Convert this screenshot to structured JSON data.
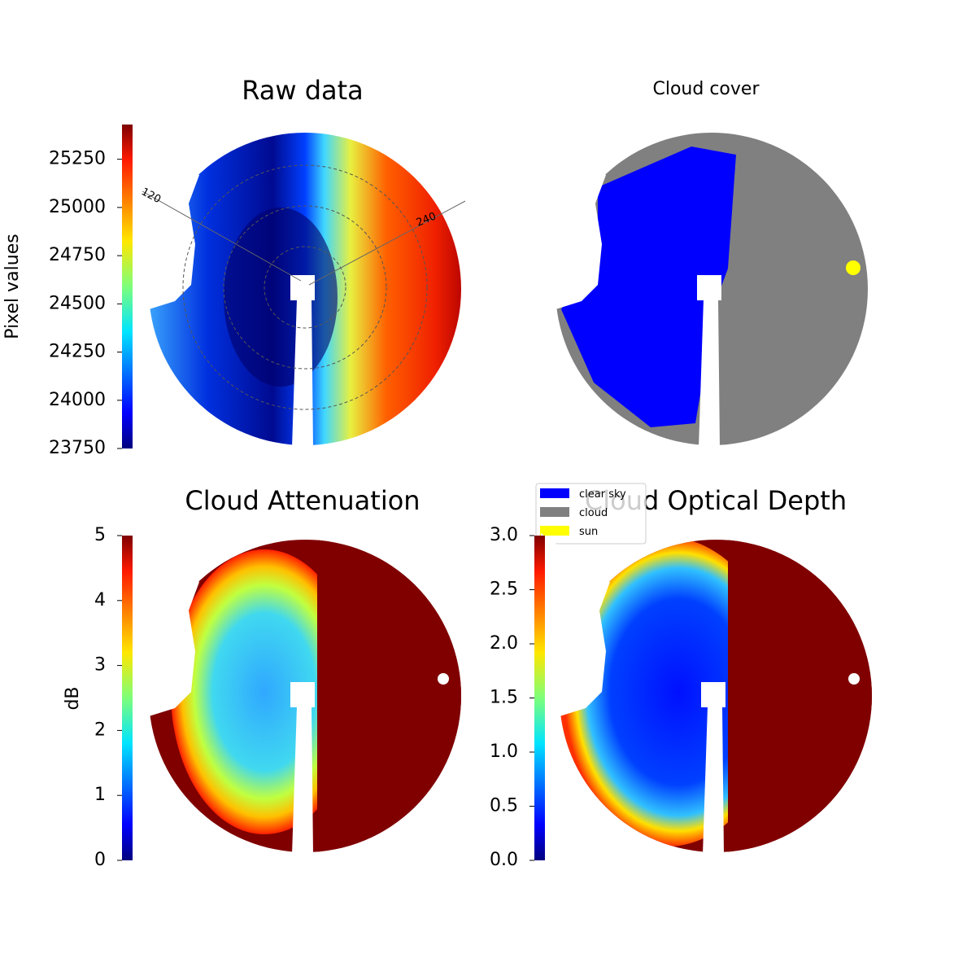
{
  "chart_data": [
    {
      "type": "image",
      "title": "Raw data",
      "colormap": "jet",
      "colorbar_label": "Pixel values",
      "ylim": [
        23750,
        25430
      ],
      "yticks": [
        23750,
        24000,
        24250,
        24500,
        24750,
        25000,
        25250
      ],
      "angle_labels": [
        "120",
        "240"
      ]
    },
    {
      "type": "image",
      "title": "Cloud cover",
      "series": [
        {
          "name": "clear sky",
          "color": "#0000ff"
        },
        {
          "name": "cloud",
          "color": "#808080"
        },
        {
          "name": "sun",
          "color": "#ffff00"
        }
      ]
    },
    {
      "type": "image",
      "title": "Cloud Attenuation",
      "colormap": "jet",
      "colorbar_label": "dB",
      "ylim": [
        0,
        5
      ],
      "yticks": [
        0,
        1,
        2,
        3,
        4,
        5
      ]
    },
    {
      "type": "image",
      "title": "Cloud Optical Depth",
      "colormap": "jet",
      "ylim": [
        0,
        3.0
      ],
      "yticks": [
        {
          "value": 0,
          "label": "0.0"
        },
        0.5,
        {
          "value": 1,
          "label": "1.0"
        },
        1.5,
        {
          "value": 2,
          "label": "2.0"
        },
        2.5,
        {
          "value": 3,
          "label": "3.0"
        }
      ]
    }
  ]
}
